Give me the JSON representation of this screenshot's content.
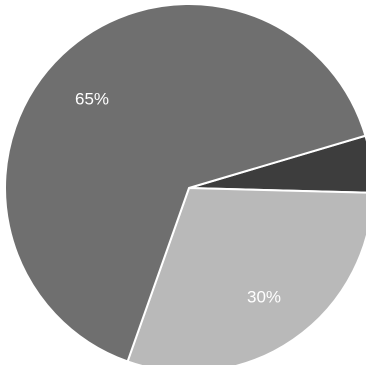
{
  "chart_data": {
    "type": "pie",
    "title": "",
    "start_angle_deg": 0,
    "slices": [
      {
        "label": "",
        "value": 5,
        "color": "#3d3d3d",
        "display": ""
      },
      {
        "label": "",
        "value": 30,
        "color": "#b9b9b9",
        "display": "30%"
      },
      {
        "label": "",
        "value": 65,
        "color": "#6f6f6f",
        "display": "65%"
      }
    ]
  }
}
